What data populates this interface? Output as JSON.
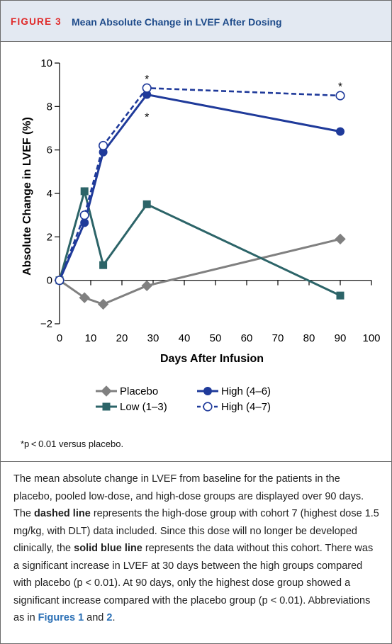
{
  "header": {
    "label": "FIGURE 3",
    "title": "Mean Absolute Change in LVEF After Dosing"
  },
  "chart_data": {
    "type": "line",
    "title": "",
    "xlabel": "Days After Infusion",
    "ylabel": "Absolute Change in LVEF (%)",
    "xlim": [
      0,
      100
    ],
    "ylim": [
      -2,
      10
    ],
    "xticks": [
      "0",
      "10",
      "20",
      "30",
      "40",
      "50",
      "60",
      "70",
      "80",
      "90",
      "100"
    ],
    "yticks": [
      "−2",
      "0",
      "2",
      "4",
      "6",
      "8",
      "10"
    ],
    "series": [
      {
        "name": "Placebo",
        "color": "#808080",
        "marker": "diamond",
        "dashed": false,
        "points": [
          [
            0,
            0
          ],
          [
            8,
            -0.8
          ],
          [
            14,
            -1.1
          ],
          [
            28,
            -0.25
          ],
          [
            90,
            1.9
          ]
        ]
      },
      {
        "name": "Low (1–3)",
        "color": "#2c6468",
        "marker": "square",
        "dashed": false,
        "points": [
          [
            0,
            0
          ],
          [
            8,
            4.1
          ],
          [
            14,
            0.7
          ],
          [
            28,
            3.5
          ],
          [
            90,
            -0.7
          ]
        ]
      },
      {
        "name": "High (4–6)",
        "color": "#1f3a9a",
        "marker": "circle",
        "dashed": false,
        "points": [
          [
            0,
            0
          ],
          [
            8,
            2.65
          ],
          [
            14,
            5.9
          ],
          [
            28,
            8.55
          ],
          [
            90,
            6.85
          ]
        ]
      },
      {
        "name": "High (4–7)",
        "color": "#1f3a9a",
        "marker": "circle-open",
        "dashed": true,
        "points": [
          [
            0,
            0
          ],
          [
            8,
            3.0
          ],
          [
            14,
            6.2
          ],
          [
            28,
            8.85
          ],
          [
            90,
            8.5
          ]
        ]
      }
    ],
    "annotations": [
      {
        "text": "*",
        "x": 28,
        "y": 9.35
      },
      {
        "text": "*",
        "x": 28,
        "y": 7.6
      },
      {
        "text": "*",
        "x": 90,
        "y": 9.0
      }
    ],
    "legend": "bottom"
  },
  "footnote": "*p < 0.01 versus placebo.",
  "caption": [
    {
      "t": "The mean absolute change in LVEF from baseline for the patients in the placebo, pooled low-dose, and high-dose groups are displayed over 90 days. The "
    },
    {
      "t": "dashed line",
      "b": true
    },
    {
      "t": " represents the high-dose group with cohort 7 (highest dose 1.5 mg/kg, with DLT) data included. Since this dose will no longer be developed clinically, the "
    },
    {
      "t": "solid blue line",
      "b": true
    },
    {
      "t": " represents the data without this cohort. There was a significant increase in LVEF at 30 days between the high groups compared with placebo (p < 0.01). At 90 days, only the highest dose group showed a significant increase compared with the placebo group (p < 0.01). Abbreviations as in "
    },
    {
      "t": "Figures 1",
      "ref": true
    },
    {
      "t": " and "
    },
    {
      "t": "2",
      "ref": true
    },
    {
      "t": "."
    }
  ]
}
